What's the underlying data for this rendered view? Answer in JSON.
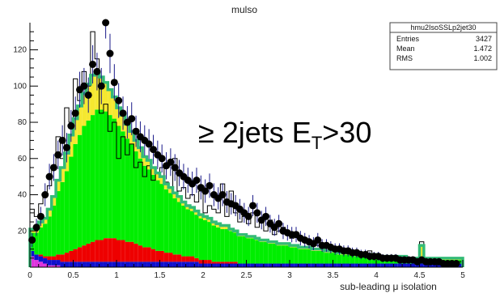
{
  "chart_data": {
    "type": "bar",
    "title": "mulso",
    "xlabel": "sub-leading μ isolation",
    "ylabel": "",
    "xlim": [
      0,
      5
    ],
    "ylim": [
      0,
      135
    ],
    "grid": false,
    "x_ticks": [
      0,
      0.5,
      1,
      1.5,
      2,
      2.5,
      3,
      3.5,
      4,
      4.5,
      5
    ],
    "y_ticks": [
      20,
      40,
      60,
      80,
      100,
      120
    ],
    "bin_width": 0.05,
    "stats_box": {
      "title": "hmu2IsoSSLp2jet30",
      "rows": [
        {
          "label": "Entries",
          "value": "3427"
        },
        {
          "label": "Mean",
          "value": "1.472"
        },
        {
          "label": "RMS",
          "value": "1.002"
        }
      ]
    },
    "annotation": {
      "main": "≥ 2jets E",
      "subscript": "T",
      "tail": ">30"
    },
    "colors": {
      "green": "#00ee00",
      "yellow": "#f5e830",
      "red": "#ee0000",
      "blue": "#1010cc",
      "magenta": "#dd33dd",
      "total_line": "#33bb77",
      "outline": "#000000",
      "data_points": "#000000"
    },
    "series": [
      {
        "key": "magenta",
        "values": [
          6,
          4,
          3,
          2,
          1,
          1,
          1,
          0,
          0,
          0,
          0,
          0,
          0,
          0,
          0,
          0,
          0,
          0,
          0,
          0,
          0,
          0,
          0,
          0,
          0,
          0,
          0,
          0,
          0,
          0,
          0,
          0,
          0,
          0,
          0,
          0,
          0,
          0,
          0,
          0,
          0,
          0,
          0,
          0,
          0,
          0,
          0,
          0,
          0,
          0,
          0,
          0,
          0,
          0,
          0,
          0,
          0,
          0,
          0,
          0,
          0,
          0,
          0,
          0,
          0,
          0,
          0,
          0,
          0,
          0,
          0,
          0,
          0,
          0,
          0,
          0,
          0,
          0,
          0,
          0,
          0,
          0,
          0,
          0,
          0,
          0,
          0,
          0,
          0,
          0,
          0,
          0,
          0,
          0,
          0,
          0,
          0,
          0,
          0,
          0
        ]
      },
      {
        "key": "blue",
        "values": [
          3,
          3,
          3,
          3,
          3,
          3,
          3,
          3,
          3,
          3,
          3,
          3,
          3,
          3,
          3,
          3,
          3,
          3,
          3,
          3,
          3,
          3,
          3,
          3,
          3,
          3,
          3,
          3,
          3,
          3,
          3,
          3,
          3,
          3,
          3,
          3,
          3,
          3,
          3,
          2,
          2,
          2,
          2,
          2,
          2,
          2,
          2,
          2,
          2,
          2,
          2,
          2,
          2,
          2,
          2,
          2,
          2,
          2,
          2,
          2,
          2,
          2,
          2,
          2,
          2,
          2,
          2,
          2,
          2,
          2,
          2,
          2,
          2,
          2,
          2,
          2,
          2,
          2,
          2,
          2,
          2,
          2,
          2,
          2,
          2,
          2,
          2,
          2,
          2,
          2,
          2,
          2,
          2,
          2,
          2,
          2,
          2,
          2,
          2,
          2
        ]
      },
      {
        "key": "red",
        "values": [
          0,
          0,
          1,
          1,
          2,
          2,
          3,
          4,
          5,
          6,
          7,
          8,
          9,
          10,
          11,
          12,
          12,
          13,
          13,
          13,
          12,
          12,
          11,
          11,
          10,
          9,
          8,
          8,
          7,
          6,
          6,
          5,
          5,
          4,
          4,
          3,
          3,
          3,
          2,
          2,
          2,
          2,
          1,
          1,
          1,
          1,
          1,
          1,
          0,
          0,
          0,
          0,
          0,
          0,
          0,
          0,
          0,
          0,
          0,
          0,
          0,
          0,
          0,
          0,
          0,
          0,
          0,
          0,
          0,
          0,
          0,
          0,
          0,
          0,
          0,
          0,
          0,
          0,
          0,
          0,
          0,
          0,
          0,
          0,
          0,
          0,
          0,
          0,
          0,
          0,
          0,
          0,
          0,
          0,
          0,
          0,
          0,
          0,
          0,
          0
        ]
      },
      {
        "key": "green",
        "values": [
          10,
          12,
          15,
          18,
          22,
          28,
          35,
          40,
          45,
          52,
          58,
          62,
          66,
          68,
          70,
          72,
          72,
          70,
          68,
          66,
          63,
          60,
          57,
          54,
          51,
          48,
          45,
          43,
          41,
          39,
          37,
          35,
          33,
          31,
          29,
          28,
          26,
          25,
          24,
          23,
          22,
          21,
          20,
          19,
          18,
          18,
          17,
          16,
          15,
          15,
          14,
          14,
          13,
          12,
          12,
          11,
          11,
          10,
          10,
          10,
          9,
          9,
          8,
          8,
          8,
          7,
          7,
          7,
          6,
          6,
          6,
          5,
          5,
          5,
          5,
          4,
          4,
          4,
          4,
          4,
          3,
          3,
          3,
          3,
          3,
          3,
          3,
          2,
          2,
          2,
          2,
          2,
          2,
          2,
          2,
          2,
          2,
          2,
          2,
          2
        ]
      },
      {
        "key": "yellow",
        "values": [
          2,
          2,
          3,
          3,
          4,
          5,
          6,
          8,
          10,
          12,
          14,
          16,
          18,
          20,
          22,
          20,
          18,
          16,
          14,
          12,
          10,
          9,
          8,
          7,
          6,
          6,
          5,
          5,
          4,
          4,
          4,
          3,
          3,
          3,
          3,
          2,
          2,
          2,
          2,
          2,
          2,
          2,
          2,
          2,
          2,
          2,
          1,
          1,
          1,
          1,
          1,
          1,
          1,
          1,
          1,
          1,
          1,
          1,
          1,
          1,
          1,
          1,
          1,
          1,
          1,
          1,
          1,
          1,
          1,
          1,
          1,
          1,
          1,
          1,
          1,
          1,
          1,
          1,
          1,
          1,
          1,
          1,
          1,
          1,
          1,
          1,
          1,
          1,
          1,
          1,
          8,
          1,
          1,
          1,
          1,
          1,
          1,
          1,
          1,
          1
        ]
      }
    ],
    "outline_values": [
      32,
      28,
      35,
      40,
      45,
      55,
      72,
      60,
      88,
      80,
      104,
      92,
      108,
      100,
      130,
      115,
      85,
      90,
      75,
      80,
      60,
      72,
      62,
      68,
      55,
      58,
      50,
      56,
      48,
      52,
      55,
      47,
      44,
      60,
      42,
      44,
      38,
      40,
      36,
      42,
      30,
      34,
      32,
      30,
      46,
      28,
      42,
      30,
      25,
      28,
      24,
      30,
      22,
      26,
      20,
      26,
      18,
      20,
      22,
      18,
      16,
      18,
      15,
      14,
      14,
      12,
      12,
      13,
      11,
      10,
      10,
      9,
      9,
      8,
      8,
      8,
      7,
      7,
      9,
      7,
      6,
      6,
      6,
      6,
      5,
      5,
      5,
      5,
      4,
      4,
      14,
      4,
      4,
      3,
      3,
      3,
      3,
      3,
      3,
      3
    ],
    "data_points": [
      {
        "x": 0.025,
        "y": 15
      },
      {
        "x": 0.075,
        "y": 22
      },
      {
        "x": 0.125,
        "y": 28
      },
      {
        "x": 0.175,
        "y": 40
      },
      {
        "x": 0.225,
        "y": 50
      },
      {
        "x": 0.275,
        "y": 55
      },
      {
        "x": 0.325,
        "y": 62
      },
      {
        "x": 0.375,
        "y": 70
      },
      {
        "x": 0.425,
        "y": 66
      },
      {
        "x": 0.475,
        "y": 78
      },
      {
        "x": 0.525,
        "y": 85
      },
      {
        "x": 0.575,
        "y": 98
      },
      {
        "x": 0.625,
        "y": 100
      },
      {
        "x": 0.675,
        "y": 95
      },
      {
        "x": 0.725,
        "y": 112
      },
      {
        "x": 0.775,
        "y": 108
      },
      {
        "x": 0.825,
        "y": 100
      },
      {
        "x": 0.875,
        "y": 138
      },
      {
        "x": 0.925,
        "y": 118
      },
      {
        "x": 0.975,
        "y": 102
      },
      {
        "x": 1.025,
        "y": 92
      },
      {
        "x": 1.075,
        "y": 85
      },
      {
        "x": 1.125,
        "y": 80
      },
      {
        "x": 1.175,
        "y": 82
      },
      {
        "x": 1.225,
        "y": 75
      },
      {
        "x": 1.275,
        "y": 72
      },
      {
        "x": 1.325,
        "y": 70
      },
      {
        "x": 1.375,
        "y": 68
      },
      {
        "x": 1.425,
        "y": 65
      },
      {
        "x": 1.475,
        "y": 62
      },
      {
        "x": 1.525,
        "y": 60
      },
      {
        "x": 1.575,
        "y": 56
      },
      {
        "x": 1.625,
        "y": 58
      },
      {
        "x": 1.675,
        "y": 55
      },
      {
        "x": 1.725,
        "y": 52
      },
      {
        "x": 1.775,
        "y": 50
      },
      {
        "x": 1.825,
        "y": 48
      },
      {
        "x": 1.875,
        "y": 46
      },
      {
        "x": 1.925,
        "y": 48
      },
      {
        "x": 1.975,
        "y": 44
      },
      {
        "x": 2.025,
        "y": 42
      },
      {
        "x": 2.075,
        "y": 45
      },
      {
        "x": 2.125,
        "y": 40
      },
      {
        "x": 2.175,
        "y": 38
      },
      {
        "x": 2.225,
        "y": 40
      },
      {
        "x": 2.275,
        "y": 36
      },
      {
        "x": 2.325,
        "y": 35
      },
      {
        "x": 2.375,
        "y": 34
      },
      {
        "x": 2.425,
        "y": 32
      },
      {
        "x": 2.475,
        "y": 30
      },
      {
        "x": 2.525,
        "y": 28
      },
      {
        "x": 2.575,
        "y": 34
      },
      {
        "x": 2.625,
        "y": 30
      },
      {
        "x": 2.675,
        "y": 26
      },
      {
        "x": 2.725,
        "y": 28
      },
      {
        "x": 2.775,
        "y": 24
      },
      {
        "x": 2.825,
        "y": 22
      },
      {
        "x": 2.875,
        "y": 24
      },
      {
        "x": 2.925,
        "y": 20
      },
      {
        "x": 2.975,
        "y": 19
      },
      {
        "x": 3.025,
        "y": 18
      },
      {
        "x": 3.075,
        "y": 18
      },
      {
        "x": 3.125,
        "y": 16
      },
      {
        "x": 3.175,
        "y": 15
      },
      {
        "x": 3.225,
        "y": 14
      },
      {
        "x": 3.275,
        "y": 13
      },
      {
        "x": 3.325,
        "y": 15
      },
      {
        "x": 3.375,
        "y": 12
      },
      {
        "x": 3.425,
        "y": 12
      },
      {
        "x": 3.475,
        "y": 11
      },
      {
        "x": 3.525,
        "y": 10
      },
      {
        "x": 3.575,
        "y": 10
      },
      {
        "x": 3.625,
        "y": 9
      },
      {
        "x": 3.675,
        "y": 9
      },
      {
        "x": 3.725,
        "y": 8
      },
      {
        "x": 3.775,
        "y": 8
      },
      {
        "x": 3.825,
        "y": 7
      },
      {
        "x": 3.875,
        "y": 7
      },
      {
        "x": 3.925,
        "y": 6
      },
      {
        "x": 3.975,
        "y": 6
      },
      {
        "x": 4.025,
        "y": 6
      },
      {
        "x": 4.075,
        "y": 5
      },
      {
        "x": 4.125,
        "y": 5
      },
      {
        "x": 4.175,
        "y": 5
      },
      {
        "x": 4.225,
        "y": 5
      },
      {
        "x": 4.275,
        "y": 4
      },
      {
        "x": 4.325,
        "y": 4
      },
      {
        "x": 4.375,
        "y": 4
      },
      {
        "x": 4.425,
        "y": 4
      },
      {
        "x": 4.475,
        "y": 3
      },
      {
        "x": 4.525,
        "y": 4
      },
      {
        "x": 4.575,
        "y": 3
      },
      {
        "x": 4.625,
        "y": 3
      },
      {
        "x": 4.675,
        "y": 3
      },
      {
        "x": 4.725,
        "y": 3
      },
      {
        "x": 4.775,
        "y": 2
      },
      {
        "x": 4.825,
        "y": 2
      },
      {
        "x": 4.875,
        "y": 2
      },
      {
        "x": 4.925,
        "y": 2
      }
    ]
  }
}
